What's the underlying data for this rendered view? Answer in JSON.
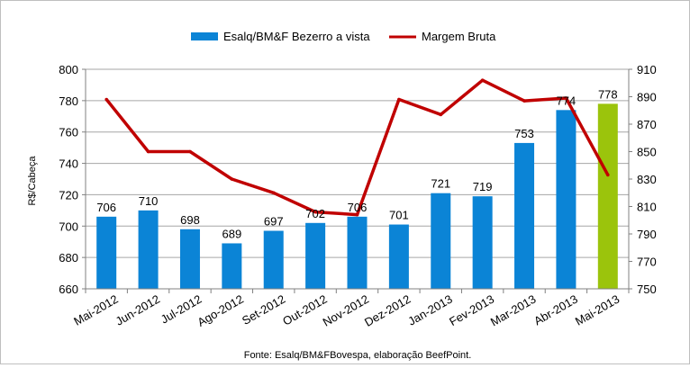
{
  "chart_data": {
    "type": "bar",
    "categories": [
      "Mai-2012",
      "Jun-2012",
      "Jul-2012",
      "Ago-2012",
      "Set-2012",
      "Out-2012",
      "Nov-2012",
      "Dez-2012",
      "Jan-2013",
      "Fev-2013",
      "Mar-2013",
      "Abr-2013",
      "Mai-2013"
    ],
    "series": [
      {
        "name": "Esalq/BM&F Bezerro a vista",
        "type": "bar",
        "axis": "left",
        "color": "#0b84d6",
        "highlight_color": "#9bc40c",
        "highlight_index": 12,
        "values": [
          706,
          710,
          698,
          689,
          697,
          702,
          706,
          701,
          721,
          719,
          753,
          774,
          778
        ]
      },
      {
        "name": "Margem Bruta",
        "type": "line",
        "axis": "right",
        "color": "#c00000",
        "values": [
          888,
          850,
          850,
          830,
          820,
          806,
          804,
          888,
          877,
          902,
          887,
          889,
          833
        ]
      }
    ],
    "ylabel": "R$/Cabeça",
    "ylim": [
      660,
      800
    ],
    "yticks": [
      660,
      680,
      700,
      720,
      740,
      760,
      780,
      800
    ],
    "y2lim": [
      750,
      910
    ],
    "y2ticks": [
      750,
      770,
      790,
      810,
      830,
      850,
      870,
      890,
      910
    ],
    "grid": true,
    "legend_position": "top",
    "source": "Fonte: Esalq/BM&FBovespa, elaboração BeefPoint."
  }
}
